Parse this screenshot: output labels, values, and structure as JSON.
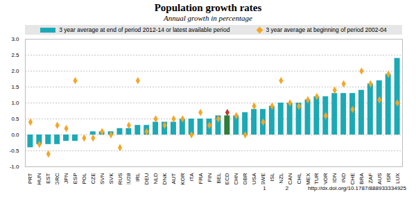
{
  "chart_data": {
    "type": "bar",
    "title": "Population growth rates",
    "subtitle": "Annual growth in percentage",
    "categories": [
      "PRT",
      "HUN",
      "EST",
      "GRC",
      "JPN",
      "ESP",
      "POL",
      "CZE",
      "SVN",
      "SVK",
      "RUS",
      "EU28",
      "IRL",
      "DEU",
      "NLD",
      "DNK",
      "AUT",
      "KOR",
      "ITA",
      "FRA",
      "FIN",
      "BEL",
      "OECD",
      "CHN",
      "GBR",
      "USA",
      "SWE",
      "ISL",
      "NZL",
      "CAN",
      "CHL",
      "MEX",
      "TUR",
      "NOR",
      "IDN",
      "IND",
      "CHE",
      "BRA",
      "ZAF",
      "AUS",
      "ISR",
      "LUX"
    ],
    "series": [
      {
        "name": "3 year average at end of period 2012-14 or latest available period",
        "type": "bar",
        "marker": "square",
        "colors": [
          "#1ba9b5",
          "#1ba9b5",
          "#1ba9b5",
          "#1ba9b5",
          "#1ba9b5",
          "#1ba9b5",
          "#1ba9b5",
          "#1ba9b5",
          "#1ba9b5",
          "#1ba9b5",
          "#1ba9b5",
          "#1ba9b5",
          "#1ba9b5",
          "#1ba9b5",
          "#1ba9b5",
          "#1ba9b5",
          "#1ba9b5",
          "#1ba9b5",
          "#1ba9b5",
          "#1ba9b5",
          "#1ba9b5",
          "#1ba9b5",
          "#2e7d3a",
          "#1ba9b5",
          "#1ba9b5",
          "#1ba9b5",
          "#1ba9b5",
          "#1ba9b5",
          "#1ba9b5",
          "#1ba9b5",
          "#1ba9b5",
          "#1ba9b5",
          "#1ba9b5",
          "#1ba9b5",
          "#1ba9b5",
          "#1ba9b5",
          "#1ba9b5",
          "#1ba9b5",
          "#1ba9b5",
          "#1ba9b5",
          "#1ba9b5",
          "#1ba9b5"
        ],
        "values": [
          -0.4,
          -0.3,
          -0.3,
          -0.3,
          -0.2,
          -0.2,
          0.0,
          0.1,
          0.1,
          0.1,
          0.2,
          0.2,
          0.3,
          0.3,
          0.4,
          0.4,
          0.4,
          0.5,
          0.5,
          0.5,
          0.5,
          0.6,
          0.6,
          0.6,
          0.7,
          0.8,
          0.8,
          0.9,
          1.0,
          1.0,
          1.0,
          1.1,
          1.2,
          1.2,
          1.3,
          1.3,
          1.3,
          1.4,
          1.6,
          1.7,
          1.9,
          2.4
        ]
      },
      {
        "name": "3 year average at beginning of period 2002-04",
        "type": "scatter",
        "marker": "diamond",
        "colors": [
          "#f5a623",
          "#f5a623",
          "#f5a623",
          "#f5a623",
          "#f5a623",
          "#f5a623",
          "#f5a623",
          "#f5a623",
          "#f5a623",
          "#f5a623",
          "#f5a623",
          "#f5a623",
          "#f5a623",
          "#f5a623",
          "#f5a623",
          "#f5a623",
          "#f5a623",
          "#f5a623",
          "#f5a623",
          "#f5a623",
          "#f5a623",
          "#f5a623",
          "#c0392b",
          "#f5a623",
          "#f5a623",
          "#f5a623",
          "#f5a623",
          "#f5a623",
          "#f5a623",
          "#f5a623",
          "#f5a623",
          "#f5a623",
          "#f5a623",
          "#f5a623",
          "#f5a623",
          "#f5a623",
          "#f5a623",
          "#f5a623",
          "#f5a623",
          "#f5a623",
          "#f5a623",
          "#f5a623"
        ],
        "values": [
          0.4,
          -0.3,
          -0.6,
          0.3,
          0.2,
          1.7,
          -0.1,
          -0.1,
          0.1,
          0.0,
          -0.4,
          0.3,
          1.7,
          0.1,
          0.5,
          0.3,
          0.5,
          0.5,
          0.0,
          0.7,
          0.3,
          0.5,
          0.7,
          0.6,
          0.0,
          0.9,
          0.4,
          0.9,
          1.7,
          1.0,
          0.9,
          1.1,
          1.2,
          0.6,
          1.4,
          1.6,
          0.8,
          2.0,
          1.6,
          1.1,
          1.9,
          1.0
        ]
      }
    ],
    "ylim": [
      -1.0,
      3.0
    ],
    "yticks": [
      {
        "value": -1.0,
        "label": "-1.0"
      },
      {
        "value": -0.5,
        "label": "-0.5"
      },
      {
        "value": 0,
        "label": "0.0"
      },
      {
        "value": 0.5,
        "label": "0.5"
      },
      {
        "value": 1.0,
        "label": "1.0"
      },
      {
        "value": 1.5,
        "label": "1.5"
      },
      {
        "value": 2.0,
        "label": "2.0"
      },
      {
        "value": 2.5,
        "label": "2.5"
      },
      {
        "value": 3.0,
        "label": "3.0"
      }
    ],
    "grid": true,
    "legend": "top",
    "footer": [
      "1",
      "2",
      "http://dx.doi.org/10.1787/888933334925"
    ]
  }
}
